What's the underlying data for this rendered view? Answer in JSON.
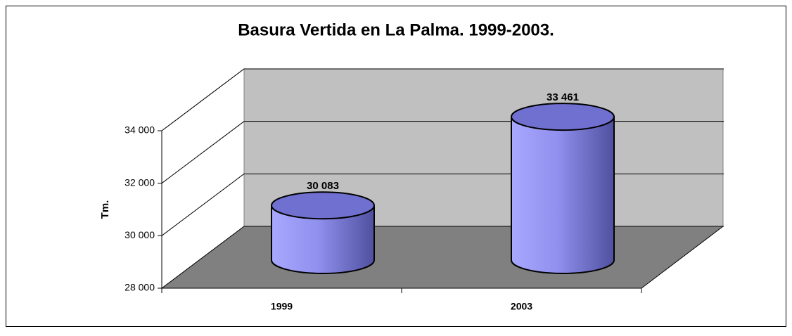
{
  "chart_data": {
    "type": "cylinder",
    "title": "Basura Vertida en La Palma. 1999-2003.",
    "ylabel": "Tm.",
    "categories": [
      "1999",
      "2003"
    ],
    "values": [
      30083,
      33461
    ],
    "value_labels": [
      "30 083",
      "33 461"
    ],
    "color": "#9999ff",
    "ylim": [
      28000,
      34000
    ],
    "yticks": [
      {
        "value": 28000,
        "label": "28 000"
      },
      {
        "value": 30000,
        "label": "30 000"
      },
      {
        "value": 32000,
        "label": "32 000"
      },
      {
        "value": 34000,
        "label": "34 000"
      }
    ],
    "grid": true
  }
}
